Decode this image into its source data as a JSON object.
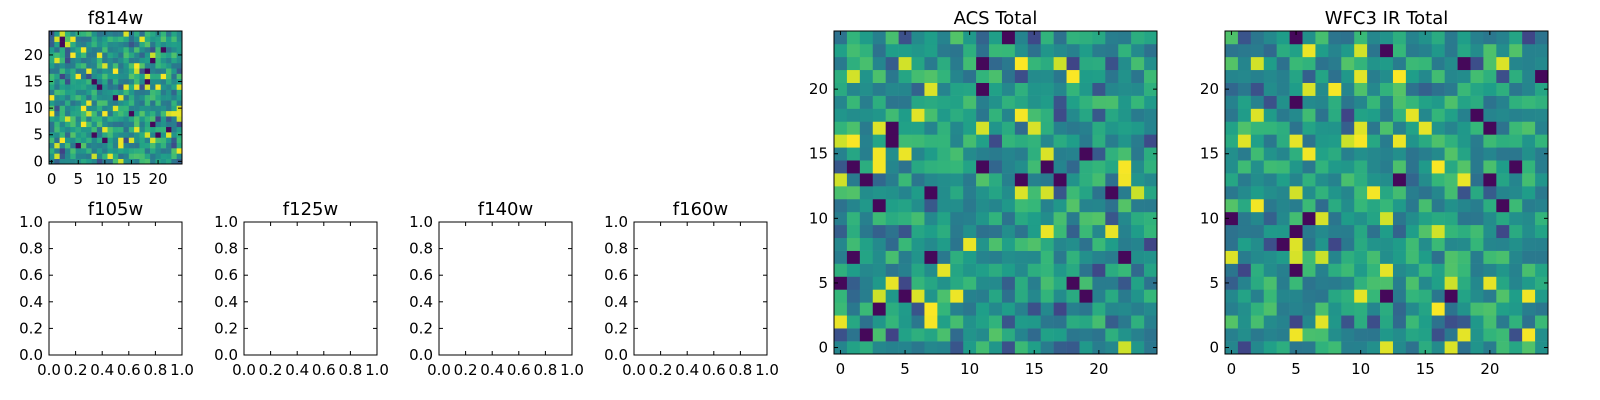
{
  "chart_data": [
    {
      "type": "heatmap",
      "title": "f814w",
      "colormap": "viridis",
      "xlim": [
        -0.5,
        24.5
      ],
      "ylim": [
        -0.5,
        24.5
      ],
      "xticks": [
        0,
        5,
        10,
        15,
        20
      ],
      "yticks": [
        0,
        5,
        10,
        15,
        20
      ],
      "xticklabels": [
        "0",
        "5",
        "10",
        "15",
        "20"
      ],
      "yticklabels": [
        "0",
        "5",
        "10",
        "15",
        "20"
      ],
      "grid_size": [
        25,
        25
      ],
      "origin": "lower"
    },
    {
      "type": "heatmap",
      "title": "ACS Total",
      "colormap": "viridis",
      "xlim": [
        -0.5,
        24.5
      ],
      "ylim": [
        -0.5,
        24.5
      ],
      "xticks": [
        0,
        5,
        10,
        15,
        20
      ],
      "yticks": [
        0,
        5,
        10,
        15,
        20
      ],
      "xticklabels": [
        "0",
        "5",
        "10",
        "15",
        "20"
      ],
      "yticklabels": [
        "0",
        "5",
        "10",
        "15",
        "20"
      ],
      "grid_size": [
        25,
        25
      ],
      "origin": "lower"
    },
    {
      "type": "heatmap",
      "title": "WFC3 IR Total",
      "colormap": "viridis",
      "xlim": [
        -0.5,
        24.5
      ],
      "ylim": [
        -0.5,
        24.5
      ],
      "xticks": [
        0,
        5,
        10,
        15,
        20
      ],
      "yticks": [
        0,
        5,
        10,
        15,
        20
      ],
      "xticklabels": [
        "0",
        "5",
        "10",
        "15",
        "20"
      ],
      "yticklabels": [
        "0",
        "5",
        "10",
        "15",
        "20"
      ],
      "grid_size": [
        25,
        25
      ],
      "origin": "lower"
    },
    {
      "type": "line",
      "title": "f105w",
      "series": [],
      "xlim": [
        0.0,
        1.0
      ],
      "ylim": [
        0.0,
        1.0
      ],
      "xticklabels": [
        "0.0",
        "0.2",
        "0.4",
        "0.6",
        "0.8",
        "1.0"
      ],
      "yticklabels": [
        "0.0",
        "0.2",
        "0.4",
        "0.6",
        "0.8",
        "1.0"
      ]
    },
    {
      "type": "line",
      "title": "f125w",
      "series": [],
      "xlim": [
        0.0,
        1.0
      ],
      "ylim": [
        0.0,
        1.0
      ],
      "xticklabels": [
        "0.0",
        "0.2",
        "0.4",
        "0.6",
        "0.8",
        "1.0"
      ],
      "yticklabels": [
        "0.0",
        "0.2",
        "0.4",
        "0.6",
        "0.8",
        "1.0"
      ]
    },
    {
      "type": "line",
      "title": "f140w",
      "series": [],
      "xlim": [
        0.0,
        1.0
      ],
      "ylim": [
        0.0,
        1.0
      ],
      "xticklabels": [
        "0.0",
        "0.2",
        "0.4",
        "0.6",
        "0.8",
        "1.0"
      ],
      "yticklabels": [
        "0.0",
        "0.2",
        "0.4",
        "0.6",
        "0.8",
        "1.0"
      ]
    },
    {
      "type": "line",
      "title": "f160w",
      "series": [],
      "xlim": [
        0.0,
        1.0
      ],
      "ylim": [
        0.0,
        1.0
      ],
      "xticklabels": [
        "0.0",
        "0.2",
        "0.4",
        "0.6",
        "0.8",
        "1.0"
      ],
      "yticklabels": [
        "0.0",
        "0.2",
        "0.4",
        "0.6",
        "0.8",
        "1.0"
      ]
    }
  ]
}
